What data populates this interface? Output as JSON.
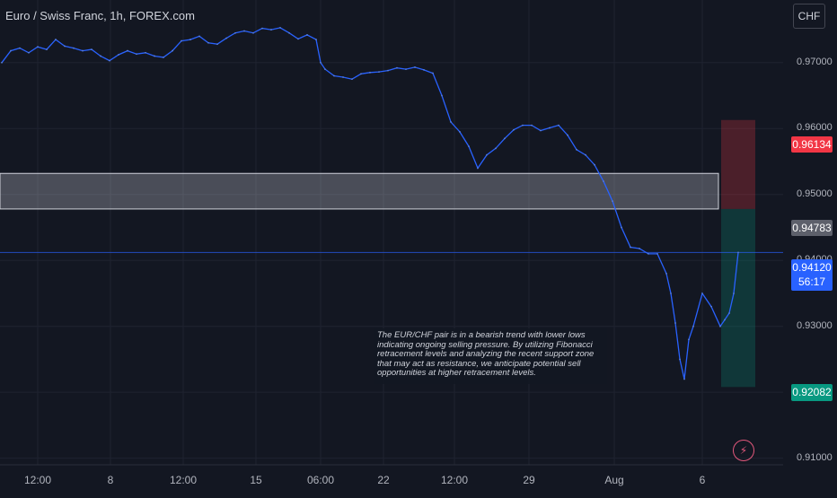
{
  "header": {
    "title": "Euro / Swiss Franc, 1h, FOREX.com",
    "currency": "CHF"
  },
  "price_tags": {
    "stop": "0.96134",
    "zone": "0.94783",
    "current_price": "0.94120",
    "countdown": "56:17",
    "target": "0.92082"
  },
  "annotation": "The EUR/CHF pair is in a bearish trend with lower lows indicating ongoing selling pressure. By utilizing Fibonacci retracement levels and analyzing the recent support zone that may act as resistance, we anticipate potential sell opportunities at higher retracement levels.",
  "colors": {
    "background": "#131722",
    "price_line": "#2962ff",
    "stop_zone": "#f23645",
    "target_zone": "#089981",
    "grid": "#1f2330"
  },
  "chart_data": {
    "type": "line",
    "title": "Euro / Swiss Franc, 1h, FOREX.com",
    "xlabel": "",
    "ylabel": "",
    "x_ticks": [
      "12:00",
      "8",
      "12:00",
      "15",
      "06:00",
      "22",
      "12:00",
      "29",
      "Aug",
      "6"
    ],
    "y_ticks": [
      "0.91000",
      "0.92000",
      "0.93000",
      "0.94000",
      "0.95000",
      "0.96000",
      "0.97000"
    ],
    "ylim": [
      0.909,
      0.9795
    ],
    "grid": true,
    "series": [
      {
        "name": "",
        "x": [
          0,
          10,
          20,
          30,
          40,
          50,
          60,
          70,
          80,
          90,
          100,
          110,
          120,
          130,
          140,
          150,
          160,
          170,
          180,
          190,
          200,
          210,
          220,
          230,
          240,
          250,
          260,
          270,
          280,
          290,
          300,
          310,
          320,
          330,
          340,
          350,
          355,
          360,
          370,
          380,
          390,
          400,
          410,
          420,
          430,
          440,
          450,
          460,
          470,
          480,
          490,
          500,
          510,
          520,
          530,
          540,
          550,
          560,
          570,
          580,
          590,
          600,
          610,
          620,
          630,
          640,
          650,
          660,
          670,
          680,
          690,
          700,
          710,
          720,
          730,
          740,
          745,
          750,
          755,
          760,
          765,
          770,
          780,
          790,
          800,
          805,
          810,
          815,
          820
        ],
        "values": [
          0.97,
          0.9718,
          0.9722,
          0.9715,
          0.9724,
          0.972,
          0.9735,
          0.9725,
          0.9722,
          0.9718,
          0.972,
          0.971,
          0.9703,
          0.9712,
          0.9718,
          0.9713,
          0.9715,
          0.971,
          0.9708,
          0.9718,
          0.9733,
          0.9735,
          0.974,
          0.973,
          0.9728,
          0.9737,
          0.9745,
          0.9748,
          0.9745,
          0.9752,
          0.975,
          0.9753,
          0.9745,
          0.9736,
          0.9742,
          0.9735,
          0.97,
          0.969,
          0.968,
          0.9678,
          0.9675,
          0.9683,
          0.9685,
          0.9686,
          0.9688,
          0.9692,
          0.969,
          0.9693,
          0.9689,
          0.9684,
          0.965,
          0.961,
          0.9595,
          0.9573,
          0.954,
          0.956,
          0.957,
          0.9585,
          0.9598,
          0.9605,
          0.9605,
          0.9597,
          0.9601,
          0.9605,
          0.959,
          0.9568,
          0.956,
          0.9545,
          0.952,
          0.949,
          0.945,
          0.942,
          0.9418,
          0.941,
          0.941,
          0.938,
          0.935,
          0.9305,
          0.925,
          0.922,
          0.928,
          0.93,
          0.935,
          0.933,
          0.93,
          0.931,
          0.932,
          0.935,
          0.9412
        ]
      }
    ],
    "zones": [
      {
        "label": "zone",
        "from": 0.9478,
        "to": 0.9532
      },
      {
        "label": "stop",
        "from": 0.9478,
        "to": 0.9613
      },
      {
        "label": "target",
        "from": 0.9208,
        "to": 0.9478
      }
    ]
  }
}
